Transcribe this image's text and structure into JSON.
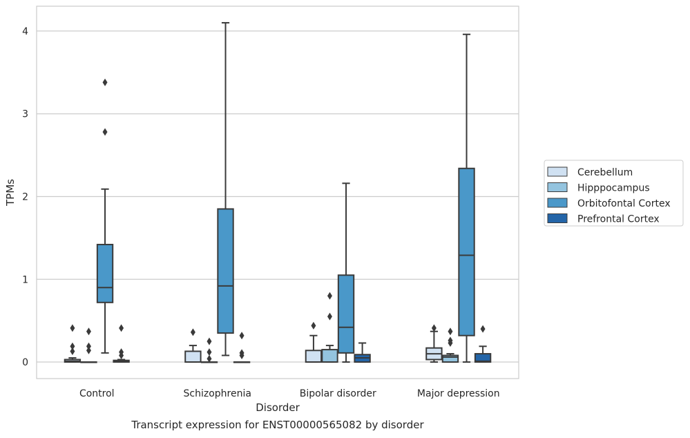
{
  "caption": "Transcript expression for ENST00000565082 by disorder",
  "chart_data": {
    "type": "boxplot",
    "xlabel": "Disorder",
    "ylabel": "TPMs",
    "ylim": [
      -0.2,
      4.3
    ],
    "yticks": [
      0,
      1,
      2,
      3,
      4
    ],
    "grid": "horizontal",
    "legend_position": "right",
    "categories": [
      "Control",
      "Schizophrenia",
      "Bipolar disorder",
      "Major depression"
    ],
    "series": [
      {
        "name": "Cerebellum",
        "color": "#d0e1f2",
        "boxes": [
          {
            "whisker_low": 0,
            "q1": 0,
            "median": 0.01,
            "q3": 0.03,
            "whisker_high": 0.05,
            "outliers": [
              0.13,
              0.19,
              0.41
            ]
          },
          {
            "whisker_low": 0,
            "q1": 0,
            "median": 0,
            "q3": 0.13,
            "whisker_high": 0.2,
            "outliers": [
              0.36
            ]
          },
          {
            "whisker_low": 0,
            "q1": 0,
            "median": 0,
            "q3": 0.14,
            "whisker_high": 0.32,
            "outliers": [
              0.44
            ]
          },
          {
            "whisker_low": 0,
            "q1": 0.03,
            "median": 0.1,
            "q3": 0.17,
            "whisker_high": 0.37,
            "outliers": [
              0.41
            ]
          }
        ]
      },
      {
        "name": "Hipppocampus",
        "color": "#94c4df",
        "boxes": [
          {
            "whisker_low": 0,
            "q1": 0,
            "median": 0,
            "q3": 0,
            "whisker_high": 0,
            "outliers": [
              0.14,
              0.19,
              0.37
            ]
          },
          {
            "whisker_low": 0,
            "q1": 0,
            "median": 0,
            "q3": 0,
            "whisker_high": 0,
            "outliers": [
              0.04,
              0.12,
              0.25
            ]
          },
          {
            "whisker_low": 0,
            "q1": 0,
            "median": 0,
            "q3": 0.15,
            "whisker_high": 0.2,
            "outliers": [
              0.55,
              0.8
            ]
          },
          {
            "whisker_low": 0,
            "q1": 0,
            "median": 0.06,
            "q3": 0.08,
            "whisker_high": 0.1,
            "outliers": [
              0.23,
              0.26,
              0.37
            ]
          }
        ]
      },
      {
        "name": "Orbitofontal Cortex",
        "color": "#4a98c9",
        "boxes": [
          {
            "whisker_low": 0.11,
            "q1": 0.72,
            "median": 0.9,
            "q3": 1.42,
            "whisker_high": 2.09,
            "outliers": [
              2.78,
              3.38
            ]
          },
          {
            "whisker_low": 0.08,
            "q1": 0.35,
            "median": 0.92,
            "q3": 1.85,
            "whisker_high": 4.1,
            "outliers": []
          },
          {
            "whisker_low": 0,
            "q1": 0.11,
            "median": 0.42,
            "q3": 1.05,
            "whisker_high": 2.16,
            "outliers": []
          },
          {
            "whisker_low": 0,
            "q1": 0.32,
            "median": 1.29,
            "q3": 2.34,
            "whisker_high": 3.96,
            "outliers": []
          }
        ]
      },
      {
        "name": "Prefrontal Cortex",
        "color": "#2465a8",
        "boxes": [
          {
            "whisker_low": 0,
            "q1": 0,
            "median": 0.01,
            "q3": 0.02,
            "whisker_high": 0.03,
            "outliers": [
              0.08,
              0.12,
              0.41
            ]
          },
          {
            "whisker_low": 0,
            "q1": 0,
            "median": 0,
            "q3": 0,
            "whisker_high": 0,
            "outliers": [
              0.08,
              0.11,
              0.32
            ]
          },
          {
            "whisker_low": 0,
            "q1": 0,
            "median": 0.05,
            "q3": 0.09,
            "whisker_high": 0.23,
            "outliers": []
          },
          {
            "whisker_low": 0,
            "q1": 0,
            "median": 0.01,
            "q3": 0.1,
            "whisker_high": 0.19,
            "outliers": [
              0.4
            ]
          }
        ]
      }
    ]
  }
}
